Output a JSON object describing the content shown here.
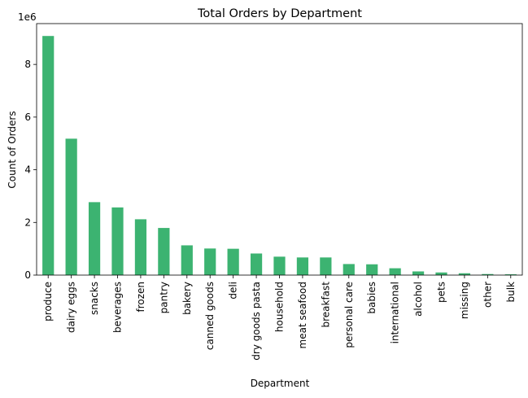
{
  "chart_data": {
    "type": "bar",
    "title": "Total Orders by Department",
    "xlabel": "Department",
    "ylabel": "Count of Orders",
    "y_offset_label": "1e6",
    "ylim": [
      0,
      9.55
    ],
    "yticks": [
      0,
      2,
      4,
      6,
      8
    ],
    "grid": false,
    "legend": "none",
    "bar_color": "#3cb371",
    "categories": [
      "produce",
      "dairy eggs",
      "snacks",
      "beverages",
      "frozen",
      "pantry",
      "bakery",
      "canned goods",
      "deli",
      "dry goods pasta",
      "household",
      "meat seafood",
      "breakfast",
      "personal care",
      "babies",
      "international",
      "alcohol",
      "pets",
      "missing",
      "other",
      "bulk"
    ],
    "values": [
      9.08,
      5.18,
      2.77,
      2.57,
      2.12,
      1.79,
      1.13,
      1.01,
      1.0,
      0.82,
      0.7,
      0.67,
      0.67,
      0.42,
      0.41,
      0.26,
      0.14,
      0.1,
      0.07,
      0.04,
      0.03
    ]
  }
}
